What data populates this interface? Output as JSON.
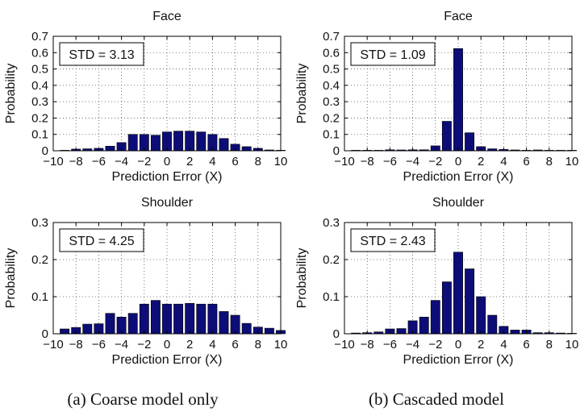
{
  "figure": {
    "captions": [
      "(a) Coarse model only",
      "(b) Cascaded model"
    ]
  },
  "chart_data": [
    {
      "type": "bar",
      "title": "Face",
      "xlabel": "Prediction Error (X)",
      "ylabel": "Probability",
      "annotation": "STD = 3.13",
      "xlim": [
        -10,
        10
      ],
      "ylim": [
        0,
        0.7
      ],
      "xticks": [
        "−10",
        "−8",
        "−6",
        "−4",
        "−2",
        "0",
        "2",
        "4",
        "6",
        "8",
        "10"
      ],
      "yticks": [
        "0",
        "0.1",
        "0.2",
        "0.3",
        "0.4",
        "0.5",
        "0.6",
        "0.7"
      ],
      "grid": true,
      "bar_color": "#0d0d78",
      "x": [
        -9,
        -8,
        -7,
        -6,
        -5,
        -4,
        -3,
        -2,
        -1,
        0,
        1,
        2,
        3,
        4,
        5,
        6,
        7,
        8,
        9,
        10
      ],
      "values": [
        0.003,
        0.01,
        0.012,
        0.015,
        0.028,
        0.05,
        0.1,
        0.1,
        0.095,
        0.115,
        0.12,
        0.12,
        0.115,
        0.1,
        0.075,
        0.04,
        0.025,
        0.015,
        0.005,
        0.003
      ]
    },
    {
      "type": "bar",
      "title": "Face",
      "xlabel": "Prediction Error (X)",
      "ylabel": "Probability",
      "annotation": "STD = 1.09",
      "xlim": [
        -10,
        10
      ],
      "ylim": [
        0,
        0.7
      ],
      "xticks": [
        "−10",
        "−8",
        "−6",
        "−4",
        "−2",
        "0",
        "2",
        "4",
        "6",
        "8",
        "10"
      ],
      "yticks": [
        "0",
        "0.1",
        "0.2",
        "0.3",
        "0.4",
        "0.5",
        "0.6",
        "0.7"
      ],
      "grid": true,
      "bar_color": "#0d0d78",
      "x": [
        -9,
        -8,
        -7,
        -6,
        -5,
        -4,
        -3,
        -2,
        -1,
        0,
        1,
        2,
        3,
        4,
        5,
        6,
        7,
        8,
        9,
        10
      ],
      "values": [
        0.001,
        0.001,
        0.002,
        0.006,
        0.005,
        0.006,
        0.006,
        0.03,
        0.18,
        0.625,
        0.11,
        0.025,
        0.012,
        0.008,
        0.005,
        0.003,
        0.005,
        0.002,
        0.001,
        0.001
      ]
    },
    {
      "type": "bar",
      "title": "Shoulder",
      "xlabel": "Prediction Error (X)",
      "ylabel": "Probability",
      "annotation": "STD = 4.25",
      "xlim": [
        -10,
        10
      ],
      "ylim": [
        0,
        0.3
      ],
      "xticks": [
        "−10",
        "−8",
        "−6",
        "−4",
        "−2",
        "0",
        "2",
        "4",
        "6",
        "8",
        "10"
      ],
      "yticks": [
        "0",
        "0.1",
        "0.2",
        "0.3"
      ],
      "grid": true,
      "bar_color": "#0d0d78",
      "x": [
        -9,
        -8,
        -7,
        -6,
        -5,
        -4,
        -3,
        -2,
        -1,
        0,
        1,
        2,
        3,
        4,
        5,
        6,
        7,
        8,
        9,
        10
      ],
      "values": [
        0.013,
        0.017,
        0.026,
        0.027,
        0.055,
        0.045,
        0.055,
        0.08,
        0.09,
        0.08,
        0.08,
        0.082,
        0.08,
        0.08,
        0.06,
        0.05,
        0.028,
        0.018,
        0.015,
        0.009
      ]
    },
    {
      "type": "bar",
      "title": "Shoulder",
      "xlabel": "Prediction Error (X)",
      "ylabel": "Probability",
      "annotation": "STD = 2.43",
      "xlim": [
        -10,
        10
      ],
      "ylim": [
        0,
        0.3
      ],
      "xticks": [
        "−10",
        "−8",
        "−6",
        "−4",
        "−2",
        "0",
        "2",
        "4",
        "6",
        "8",
        "10"
      ],
      "yticks": [
        "0",
        "0.1",
        "0.2",
        "0.3"
      ],
      "grid": true,
      "bar_color": "#0d0d78",
      "x": [
        -9,
        -8,
        -7,
        -6,
        -5,
        -4,
        -3,
        -2,
        -1,
        0,
        1,
        2,
        3,
        4,
        5,
        6,
        7,
        8,
        9,
        10
      ],
      "values": [
        0.002,
        0.003,
        0.005,
        0.013,
        0.014,
        0.035,
        0.045,
        0.09,
        0.14,
        0.22,
        0.175,
        0.1,
        0.05,
        0.02,
        0.01,
        0.01,
        0.003,
        0.003,
        0.002,
        0.001
      ]
    }
  ]
}
